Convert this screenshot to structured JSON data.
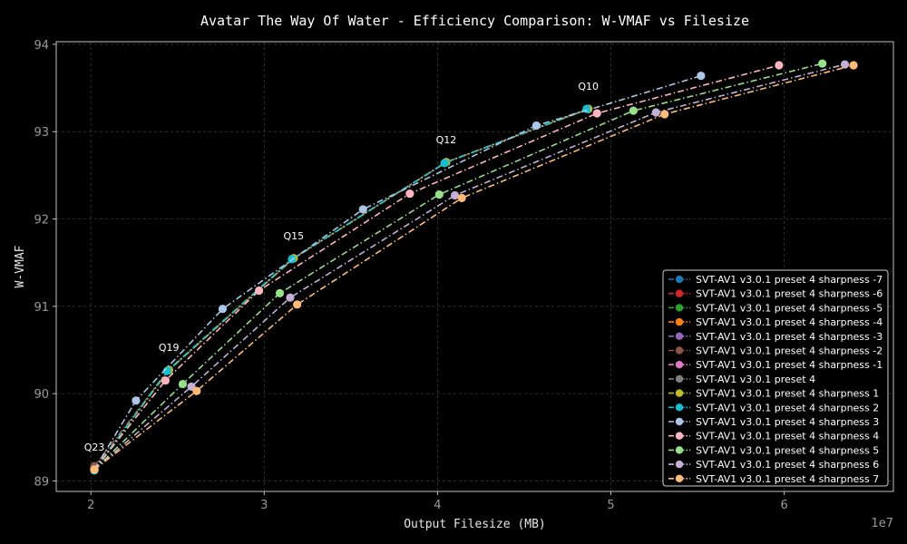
{
  "chart_data": {
    "type": "line",
    "title": "Avatar The Way Of Water - Efficiency Comparison: W-VMAF vs Filesize",
    "xlabel": "Output Filesize (MB)",
    "ylabel": "W-VMAF",
    "x_offset_label": "1e7",
    "xlim": [
      18000000,
      66300000
    ],
    "ylim": [
      88.88,
      94.03
    ],
    "xticks": [
      20000000,
      30000000,
      40000000,
      50000000,
      60000000
    ],
    "xtick_labels": [
      "2",
      "3",
      "4",
      "5",
      "6"
    ],
    "yticks": [
      89,
      90,
      91,
      92,
      93,
      94
    ],
    "ytick_labels": [
      "89",
      "90",
      "91",
      "92",
      "93",
      "94"
    ],
    "grid": true,
    "legend_position": "bottom-right",
    "annotations": [
      {
        "text": "Q23",
        "x": 20200000,
        "y": 89.13
      },
      {
        "text": "Q19",
        "x": 24500000,
        "y": 90.27
      },
      {
        "text": "Q15",
        "x": 31700000,
        "y": 91.55
      },
      {
        "text": "Q12",
        "x": 40500000,
        "y": 92.65
      },
      {
        "text": "Q10",
        "x": 48700000,
        "y": 93.26
      }
    ],
    "series": [
      {
        "name": "SVT-AV1 v3.0.1 preset 4 sharpness -7",
        "color": "#1f77b4",
        "x": [
          20200000,
          24500000,
          31700000,
          40500000,
          48700000
        ],
        "y": [
          89.13,
          90.27,
          91.55,
          92.65,
          93.26
        ]
      },
      {
        "name": "SVT-AV1 v3.0.1 preset 4 sharpness -6",
        "color": "#d62728",
        "x": [
          20200000,
          24500000,
          31700000,
          40500000,
          48700000
        ],
        "y": [
          89.13,
          90.27,
          91.55,
          92.65,
          93.26
        ]
      },
      {
        "name": "SVT-AV1 v3.0.1 preset 4 sharpness -5",
        "color": "#2ca02c",
        "x": [
          20200000,
          24500000,
          31700000,
          40500000,
          48700000
        ],
        "y": [
          89.13,
          90.27,
          91.55,
          92.65,
          93.26
        ]
      },
      {
        "name": "SVT-AV1 v3.0.1 preset 4 sharpness -4",
        "color": "#ff7f0e",
        "x": [
          20200000,
          24500000,
          31700000,
          40500000,
          48700000
        ],
        "y": [
          89.13,
          90.27,
          91.55,
          92.65,
          93.26
        ]
      },
      {
        "name": "SVT-AV1 v3.0.1 preset 4 sharpness -3",
        "color": "#9467bd",
        "x": [
          20200000,
          24500000,
          31700000,
          40500000,
          48700000
        ],
        "y": [
          89.13,
          90.27,
          91.55,
          92.65,
          93.26
        ]
      },
      {
        "name": "SVT-AV1 v3.0.1 preset 4 sharpness -2",
        "color": "#8c564b",
        "x": [
          20200000,
          24500000,
          31700000,
          40500000,
          48700000
        ],
        "y": [
          89.17,
          90.27,
          91.55,
          92.65,
          93.26
        ]
      },
      {
        "name": "SVT-AV1 v3.0.1 preset 4 sharpness -1",
        "color": "#e377c2",
        "x": [
          20200000,
          24500000,
          31700000,
          40500000,
          48700000
        ],
        "y": [
          89.13,
          90.27,
          91.55,
          92.65,
          93.26
        ]
      },
      {
        "name": "SVT-AV1 v3.0.1 preset 4",
        "color": "#7f7f7f",
        "x": [
          20200000,
          24500000,
          31700000,
          40500000,
          48700000
        ],
        "y": [
          89.13,
          90.27,
          91.55,
          92.65,
          93.26
        ]
      },
      {
        "name": "SVT-AV1 v3.0.1 preset 4 sharpness 1",
        "color": "#bcbd22",
        "x": [
          20200000,
          24500000,
          31700000,
          40500000,
          48700000
        ],
        "y": [
          89.13,
          90.27,
          91.55,
          92.65,
          93.26
        ]
      },
      {
        "name": "SVT-AV1 v3.0.1 preset 4 sharpness 2",
        "color": "#17becf",
        "x": [
          20200000,
          24400000,
          31600000,
          40400000,
          48600000
        ],
        "y": [
          89.12,
          90.26,
          91.54,
          92.64,
          93.26
        ]
      },
      {
        "name": "SVT-AV1 v3.0.1 preset 4 sharpness 3",
        "color": "#aec7e8",
        "x": [
          20200000,
          22600000,
          27600000,
          35700000,
          45700000,
          55200000
        ],
        "y": [
          89.13,
          89.92,
          90.97,
          92.11,
          93.07,
          93.64
        ]
      },
      {
        "name": "SVT-AV1 v3.0.1 preset 4 sharpness 4",
        "color": "#ffb6c1",
        "x": [
          20200000,
          24300000,
          29700000,
          38400000,
          49200000,
          59700000
        ],
        "y": [
          89.13,
          90.15,
          91.18,
          92.29,
          93.21,
          93.76
        ]
      },
      {
        "name": "SVT-AV1 v3.0.1 preset 4 sharpness 5",
        "color": "#98df8a",
        "x": [
          20200000,
          25300000,
          30900000,
          40100000,
          51300000,
          62200000
        ],
        "y": [
          89.13,
          90.11,
          91.15,
          92.28,
          93.24,
          93.78
        ]
      },
      {
        "name": "SVT-AV1 v3.0.1 preset 4 sharpness 6",
        "color": "#c5b0d5",
        "x": [
          20200000,
          25800000,
          31500000,
          41000000,
          52600000,
          63500000
        ],
        "y": [
          89.13,
          90.08,
          91.1,
          92.27,
          93.22,
          93.77
        ]
      },
      {
        "name": "SVT-AV1 v3.0.1 preset 4 sharpness 7",
        "color": "#ffbb78",
        "x": [
          20200000,
          26100000,
          31900000,
          41400000,
          53100000,
          64000000
        ],
        "y": [
          89.13,
          90.03,
          91.02,
          92.24,
          93.2,
          93.76
        ]
      }
    ]
  }
}
